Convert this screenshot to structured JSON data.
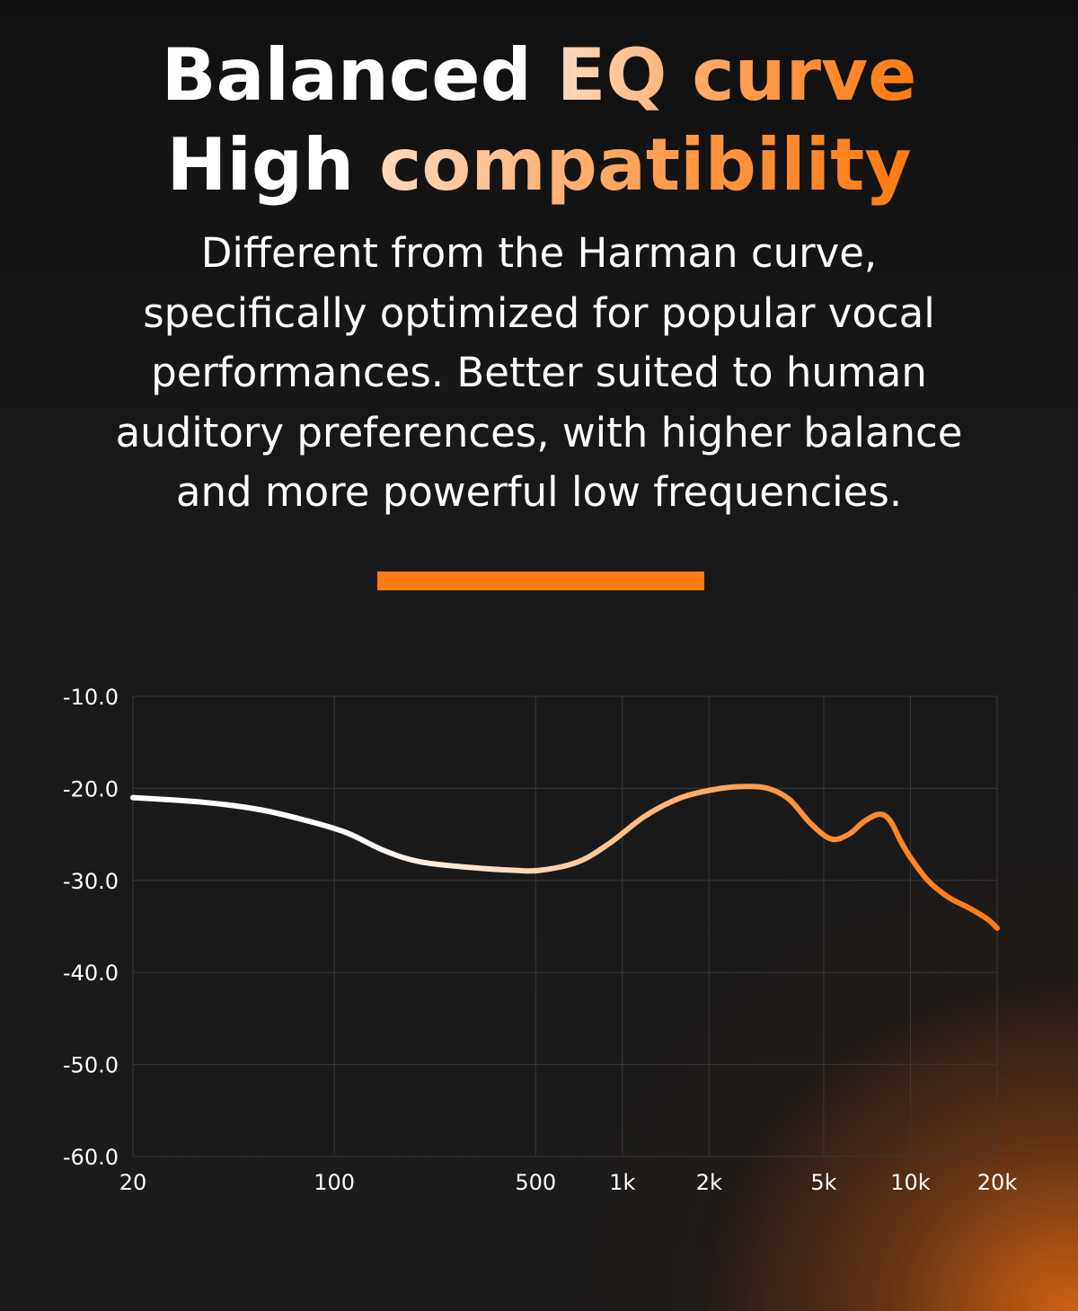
{
  "headline": {
    "line1_white": "Balanced",
    "line1_accent": "EQ curve",
    "line2_white": "High",
    "line2_accent": "compatibility"
  },
  "description": [
    "Different from the Harman curve,",
    "specifically optimized for popular vocal",
    "performances. Better suited to human",
    "auditory preferences, with higher balance",
    "and more powerful low frequencies."
  ],
  "colors": {
    "accent": "#ff7a12",
    "divider": "#ff7a12",
    "curve_start": "#ffffff",
    "curve_end": "#ff7a12",
    "grid": "#3a3a3a",
    "background": "#1a1a1a"
  },
  "chart_data": {
    "type": "line",
    "title": "",
    "xlabel": "",
    "ylabel": "",
    "x_scale": "log",
    "xlim": [
      20,
      20000
    ],
    "ylim": [
      -60,
      -10
    ],
    "grid": true,
    "x_ticks": [
      20,
      100,
      500,
      1000,
      2000,
      5000,
      10000,
      20000
    ],
    "x_tick_labels": [
      "20",
      "100",
      "500",
      "1k",
      "2k",
      "5k",
      "10k",
      "20k"
    ],
    "y_ticks": [
      -10,
      -20,
      -30,
      -40,
      -50,
      -60
    ],
    "y_tick_labels": [
      "-10.0",
      "-20.0",
      "-30.0",
      "-40.0",
      "-50.0",
      "-60.0"
    ],
    "series": [
      {
        "x": [
          20,
          35,
          55,
          80,
          110,
          150,
          200,
          300,
          420,
          520,
          700,
          900,
          1200,
          1600,
          2100,
          2600,
          3200,
          3800,
          4500,
          5300,
          6100,
          6900,
          7800,
          8500,
          9200,
          10000,
          11500,
          13500,
          16000,
          18500,
          20000
        ],
        "y": [
          -21.0,
          -21.5,
          -22.3,
          -23.5,
          -24.8,
          -26.8,
          -28.0,
          -28.6,
          -28.9,
          -28.9,
          -28.0,
          -26.0,
          -23.0,
          -21.0,
          -20.1,
          -19.8,
          -20.0,
          -21.2,
          -23.8,
          -25.5,
          -25.0,
          -23.6,
          -22.8,
          -23.5,
          -25.6,
          -27.5,
          -30.0,
          -31.8,
          -33.0,
          -34.2,
          -35.2
        ]
      }
    ]
  }
}
